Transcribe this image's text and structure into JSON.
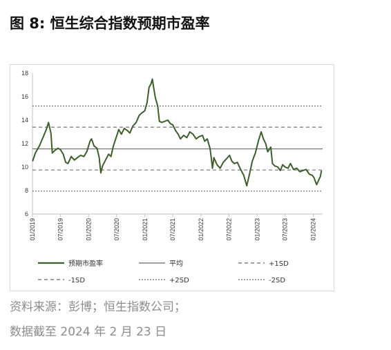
{
  "header": {
    "figure_label": "图 8:",
    "title": "恒生综合指数预期市盈率"
  },
  "footer": {
    "source": "资料来源：彭博；恒生指数公司；",
    "as_of": "数据截至  2024 年 2 月 23 日"
  },
  "chart_data": {
    "type": "line",
    "title": "",
    "xlabel": "",
    "ylabel": "",
    "ylim": [
      6,
      18
    ],
    "yticks": [
      6,
      8,
      10,
      12,
      14,
      16,
      18
    ],
    "xticks": [
      "01/2019",
      "07/2019",
      "01/2020",
      "07/2020",
      "01/2021",
      "07/2021",
      "01/2022",
      "07/2022",
      "01/2023",
      "07/2023",
      "01/2024"
    ],
    "x_range": [
      "2019-01",
      "2024-02"
    ],
    "grid": false,
    "legend_position": "bottom",
    "series": [
      {
        "name": "预期市盈率",
        "color": "#3b5e2b",
        "style": "solid",
        "points": [
          [
            "2019-01-02",
            10.5
          ],
          [
            "2019-01-20",
            11.2
          ],
          [
            "2019-02-15",
            11.8
          ],
          [
            "2019-03-10",
            12.5
          ],
          [
            "2019-04-01",
            13.2
          ],
          [
            "2019-04-15",
            13.8
          ],
          [
            "2019-05-01",
            12.9
          ],
          [
            "2019-05-10",
            11.2
          ],
          [
            "2019-05-25",
            11.4
          ],
          [
            "2019-06-15",
            11.6
          ],
          [
            "2019-07-01",
            11.5
          ],
          [
            "2019-07-20",
            11.1
          ],
          [
            "2019-08-05",
            10.4
          ],
          [
            "2019-08-20",
            10.3
          ],
          [
            "2019-09-10",
            10.9
          ],
          [
            "2019-09-30",
            10.6
          ],
          [
            "2019-10-20",
            10.8
          ],
          [
            "2019-11-10",
            11.0
          ],
          [
            "2019-12-01",
            10.9
          ],
          [
            "2019-12-20",
            11.3
          ],
          [
            "2020-01-10",
            12.2
          ],
          [
            "2020-01-20",
            12.4
          ],
          [
            "2020-02-05",
            11.8
          ],
          [
            "2020-02-25",
            11.6
          ],
          [
            "2020-03-10",
            10.8
          ],
          [
            "2020-03-20",
            9.5
          ],
          [
            "2020-04-01",
            10.1
          ],
          [
            "2020-04-20",
            10.6
          ],
          [
            "2020-05-10",
            11.1
          ],
          [
            "2020-05-25",
            10.9
          ],
          [
            "2020-06-10",
            11.8
          ],
          [
            "2020-06-30",
            12.6
          ],
          [
            "2020-07-15",
            13.2
          ],
          [
            "2020-08-01",
            12.8
          ],
          [
            "2020-08-20",
            13.3
          ],
          [
            "2020-09-10",
            13.1
          ],
          [
            "2020-09-25",
            12.9
          ],
          [
            "2020-10-15",
            13.5
          ],
          [
            "2020-11-05",
            13.8
          ],
          [
            "2020-11-25",
            14.4
          ],
          [
            "2020-12-10",
            14.6
          ],
          [
            "2020-12-31",
            14.8
          ],
          [
            "2021-01-15",
            15.5
          ],
          [
            "2021-01-28",
            16.8
          ],
          [
            "2021-02-10",
            17.1
          ],
          [
            "2021-02-18",
            17.5
          ],
          [
            "2021-03-01",
            16.6
          ],
          [
            "2021-03-10",
            15.9
          ],
          [
            "2021-03-25",
            15.2
          ],
          [
            "2021-04-05",
            13.9
          ],
          [
            "2021-04-20",
            13.8
          ],
          [
            "2021-05-10",
            13.9
          ],
          [
            "2021-05-30",
            14.0
          ],
          [
            "2021-06-15",
            13.7
          ],
          [
            "2021-07-01",
            13.6
          ],
          [
            "2021-07-20",
            13.1
          ],
          [
            "2021-08-05",
            12.8
          ],
          [
            "2021-08-20",
            12.4
          ],
          [
            "2021-09-10",
            12.7
          ],
          [
            "2021-09-30",
            12.5
          ],
          [
            "2021-10-20",
            13.0
          ],
          [
            "2021-11-10",
            12.8
          ],
          [
            "2021-11-30",
            12.4
          ],
          [
            "2021-12-20",
            12.6
          ],
          [
            "2022-01-10",
            12.7
          ],
          [
            "2022-01-25",
            12.2
          ],
          [
            "2022-02-10",
            12.4
          ],
          [
            "2022-02-28",
            11.6
          ],
          [
            "2022-03-10",
            10.6
          ],
          [
            "2022-03-16",
            9.9
          ],
          [
            "2022-03-25",
            10.8
          ],
          [
            "2022-04-15",
            10.2
          ],
          [
            "2022-05-05",
            9.9
          ],
          [
            "2022-05-25",
            10.4
          ],
          [
            "2022-06-15",
            10.7
          ],
          [
            "2022-07-05",
            11.0
          ],
          [
            "2022-07-20",
            10.5
          ],
          [
            "2022-08-05",
            10.3
          ],
          [
            "2022-08-25",
            10.4
          ],
          [
            "2022-09-15",
            9.8
          ],
          [
            "2022-10-05",
            9.3
          ],
          [
            "2022-10-25",
            8.4
          ],
          [
            "2022-11-10",
            9.3
          ],
          [
            "2022-11-30",
            10.5
          ],
          [
            "2022-12-20",
            11.2
          ],
          [
            "2023-01-10",
            12.3
          ],
          [
            "2023-01-27",
            13.0
          ],
          [
            "2023-02-10",
            12.4
          ],
          [
            "2023-02-25",
            12.0
          ],
          [
            "2023-03-10",
            11.3
          ],
          [
            "2023-03-30",
            11.7
          ],
          [
            "2023-04-10",
            10.3
          ],
          [
            "2023-04-25",
            10.1
          ],
          [
            "2023-05-15",
            10.0
          ],
          [
            "2023-05-31",
            9.7
          ],
          [
            "2023-06-15",
            10.2
          ],
          [
            "2023-07-01",
            10.0
          ],
          [
            "2023-07-20",
            9.9
          ],
          [
            "2023-08-05",
            10.3
          ],
          [
            "2023-08-25",
            9.8
          ],
          [
            "2023-09-15",
            9.9
          ],
          [
            "2023-10-05",
            9.6
          ],
          [
            "2023-10-25",
            9.7
          ],
          [
            "2023-11-15",
            9.8
          ],
          [
            "2023-12-05",
            9.4
          ],
          [
            "2023-12-25",
            9.3
          ],
          [
            "2024-01-05",
            9.1
          ],
          [
            "2024-01-22",
            8.5
          ],
          [
            "2024-02-05",
            8.9
          ],
          [
            "2024-02-15",
            9.2
          ],
          [
            "2024-02-23",
            9.7
          ]
        ]
      },
      {
        "name": "平均",
        "color": "#666666",
        "style": "solid",
        "value": 11.55
      },
      {
        "name": "+1SD",
        "color": "#666666",
        "style": "dashed",
        "value": 13.4
      },
      {
        "name": "-1SD",
        "color": "#666666",
        "style": "dashed",
        "value": 9.75
      },
      {
        "name": "+2SD",
        "color": "#666666",
        "style": "dotted",
        "value": 15.2
      },
      {
        "name": "-2SD",
        "color": "#666666",
        "style": "dotted",
        "value": 7.95
      }
    ]
  }
}
